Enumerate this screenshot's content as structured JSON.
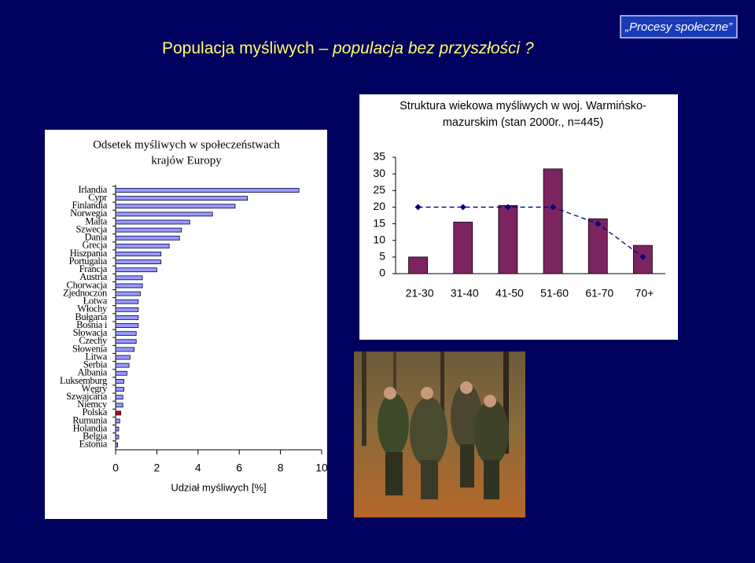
{
  "slide": {
    "title_main": "Populacja myśliwych – ",
    "title_italic": "populacja bez przyszłości ?",
    "badge": "„Procesy społeczne”"
  },
  "chart_data": [
    {
      "type": "hbar",
      "title": [
        "Odsetek myśliwych w społeczeństwach",
        "krajów Europy"
      ],
      "categories": [
        "Irlandia",
        "Cypr",
        "Finlandia",
        "Norwegia",
        "Malta",
        "Szwecja",
        "Dania",
        "Grecja",
        "Hiszpania",
        "Portugalia",
        "Francja",
        "Austria",
        "Chorwacja",
        "Zjednoczon",
        "Łotwa",
        "Włochy",
        "Bułgaria",
        "Bośnia i",
        "Słowacja",
        "Czechy",
        "Słowenia",
        "Litwa",
        "Serbia",
        "Albania",
        "Luksemburg",
        "Węgry",
        "Szwajcaria",
        "Niemcy",
        "Polska",
        "Rumunia",
        "Holandia",
        "Belgia",
        "Estonia"
      ],
      "values": [
        8.9,
        6.4,
        5.8,
        4.7,
        3.6,
        3.2,
        3.1,
        2.6,
        2.2,
        2.2,
        2.0,
        1.3,
        1.3,
        1.2,
        1.1,
        1.1,
        1.1,
        1.1,
        1.0,
        1.0,
        0.9,
        0.7,
        0.65,
        0.55,
        0.4,
        0.4,
        0.35,
        0.35,
        0.25,
        0.2,
        0.15,
        0.15,
        0.1
      ],
      "color": "#9999ff",
      "highlight": {
        "category": "Polska",
        "color": "#cc0000"
      },
      "xlim": [
        0,
        10
      ],
      "xticks": [
        0,
        2,
        4,
        6,
        8,
        10
      ],
      "xlabel": "Udział myśliwych [%]"
    },
    {
      "type": "bar_line",
      "title": [
        "Struktura wiekowa myśliwych w woj. Warmińsko-",
        "mazurskim (stan 2000r., n=445)"
      ],
      "categories": [
        "21-30",
        "31-40",
        "41-50",
        "51-60",
        "61-70",
        "70+"
      ],
      "series": [
        {
          "type": "bar",
          "color": "#7b2460",
          "values": [
            5,
            15.5,
            20.5,
            31.5,
            16.5,
            8.5
          ]
        },
        {
          "type": "line",
          "color": "#000080",
          "dashed": true,
          "values": [
            20,
            20,
            20,
            20,
            15,
            5
          ]
        }
      ],
      "ylim": [
        0,
        35
      ],
      "yticks": [
        0,
        5,
        10,
        15,
        20,
        25,
        30,
        35
      ]
    }
  ]
}
